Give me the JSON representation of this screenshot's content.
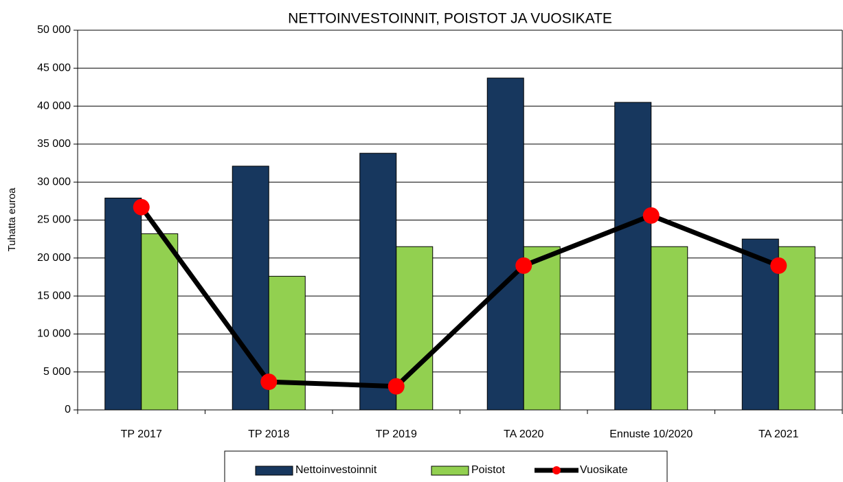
{
  "chart_data": {
    "type": "bar_line",
    "title": "NETTOINVESTOINNIT, POISTOT JA VUOSIKATE",
    "ylabel": "Tuhatta euroa",
    "categories": [
      "TP 2017",
      "TP 2018",
      "TP 2019",
      "TA 2020",
      "Ennuste 10/2020",
      "TA 2021"
    ],
    "series": [
      {
        "name": "Nettoinvestoinnit",
        "type": "bar",
        "color": "#17375e",
        "values": [
          27900,
          32100,
          33800,
          43700,
          40500,
          22500
        ]
      },
      {
        "name": "Poistot",
        "type": "bar",
        "color": "#92d050",
        "values": [
          23200,
          17600,
          21500,
          21500,
          21500,
          21500
        ]
      },
      {
        "name": "Vuosikate",
        "type": "line",
        "color": "#000000",
        "marker_color": "#ff0000",
        "values": [
          26700,
          3700,
          3100,
          19000,
          25600,
          19000
        ]
      }
    ],
    "ylim": [
      0,
      50000
    ],
    "yticks": [
      0,
      {
        "value": 5000,
        "label": "5 000"
      },
      {
        "value": 10000,
        "label": "10 000"
      },
      {
        "value": 15000,
        "label": "15 000"
      },
      {
        "value": 20000,
        "label": "20 000"
      },
      {
        "value": 25000,
        "label": "25 000"
      },
      {
        "value": 30000,
        "label": "30 000"
      },
      {
        "value": 35000,
        "label": "35 000"
      },
      {
        "value": 40000,
        "label": "40 000"
      },
      {
        "value": 45000,
        "label": "45 000"
      },
      {
        "value": 50000,
        "label": "50 000"
      }
    ],
    "grid": true,
    "legend": "bottom"
  }
}
